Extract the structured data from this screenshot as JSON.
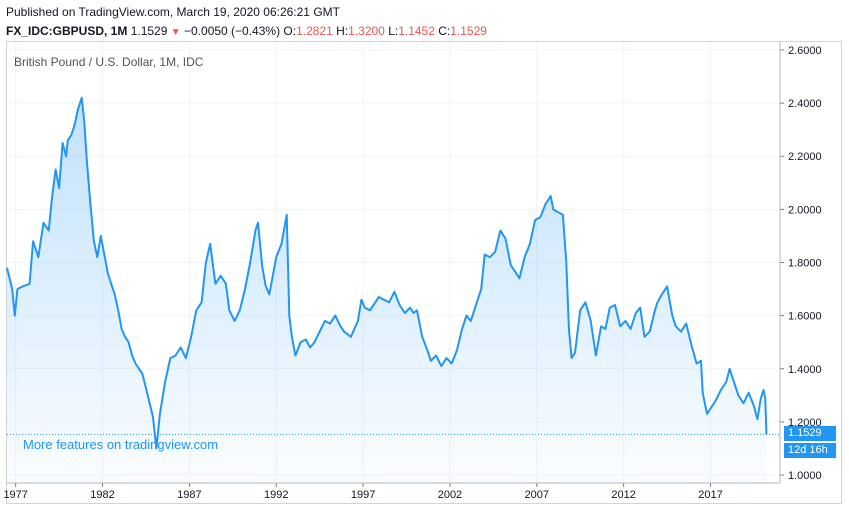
{
  "header": {
    "published": "Published on TradingView.com, March 19, 2020 06:26:21 GMT",
    "symbol": "FX_IDC:GBPUSD, 1M",
    "last": "1.1529",
    "change": "−0.0050 (−0.43%)",
    "open_label": "O:",
    "open": "1.2821",
    "high_label": "H:",
    "high": "1.3200",
    "low_label": "L:",
    "low": "1.1452",
    "close_label": "C:",
    "close": "1.1529"
  },
  "legend_title": "British Pound / U.S. Dollar, 1M, IDC",
  "promo_text": "More features on tradingview.com",
  "price_tag": {
    "value": "1.1529",
    "countdown": "12d 16h"
  },
  "colors": {
    "line": "#2196f3",
    "fill": "#2196f3",
    "down": "#ef5350",
    "grid": "#f0f3fa",
    "axis_text": "#131722"
  },
  "chart_data": {
    "type": "area",
    "title": "British Pound / U.S. Dollar, 1M, IDC",
    "xlabel": "",
    "ylabel": "",
    "xlim": [
      1976.5,
      2021.0
    ],
    "ylim": [
      0.97,
      2.63
    ],
    "x_ticks": [
      "1977",
      "1982",
      "1987",
      "1992",
      "1997",
      "2002",
      "2007",
      "2012",
      "2017"
    ],
    "x_tick_values": [
      1977,
      1982,
      1987,
      1992,
      1997,
      2002,
      2007,
      2012,
      2017
    ],
    "y_ticks": [
      "1.0000",
      "1.2000",
      "1.4000",
      "1.6000",
      "1.8000",
      "2.0000",
      "2.2000",
      "2.4000",
      "2.6000"
    ],
    "y_tick_values": [
      1.0,
      1.2,
      1.4,
      1.6,
      1.8,
      2.0,
      2.2,
      2.4,
      2.6
    ],
    "grid": true,
    "last_value": 1.1529,
    "series": [
      {
        "values": [
          [
            1976.5,
            1.78
          ],
          [
            1976.8,
            1.7
          ],
          [
            1976.95,
            1.6
          ],
          [
            1977.1,
            1.7
          ],
          [
            1977.4,
            1.71
          ],
          [
            1977.8,
            1.72
          ],
          [
            1978.0,
            1.88
          ],
          [
            1978.3,
            1.82
          ],
          [
            1978.6,
            1.95
          ],
          [
            1978.9,
            1.92
          ],
          [
            1979.1,
            2.05
          ],
          [
            1979.3,
            2.15
          ],
          [
            1979.5,
            2.08
          ],
          [
            1979.7,
            2.25
          ],
          [
            1979.9,
            2.2
          ],
          [
            1980.0,
            2.26
          ],
          [
            1980.2,
            2.28
          ],
          [
            1980.4,
            2.32
          ],
          [
            1980.6,
            2.38
          ],
          [
            1980.8,
            2.42
          ],
          [
            1980.95,
            2.33
          ],
          [
            1981.1,
            2.18
          ],
          [
            1981.3,
            2.02
          ],
          [
            1981.5,
            1.88
          ],
          [
            1981.7,
            1.82
          ],
          [
            1981.9,
            1.9
          ],
          [
            1982.1,
            1.83
          ],
          [
            1982.3,
            1.76
          ],
          [
            1982.5,
            1.72
          ],
          [
            1982.7,
            1.68
          ],
          [
            1982.9,
            1.62
          ],
          [
            1983.1,
            1.55
          ],
          [
            1983.3,
            1.52
          ],
          [
            1983.5,
            1.5
          ],
          [
            1983.7,
            1.45
          ],
          [
            1983.9,
            1.42
          ],
          [
            1984.1,
            1.4
          ],
          [
            1984.3,
            1.38
          ],
          [
            1984.6,
            1.3
          ],
          [
            1984.9,
            1.22
          ],
          [
            1985.1,
            1.1
          ],
          [
            1985.3,
            1.23
          ],
          [
            1985.6,
            1.35
          ],
          [
            1985.9,
            1.44
          ],
          [
            1986.2,
            1.45
          ],
          [
            1986.5,
            1.48
          ],
          [
            1986.8,
            1.44
          ],
          [
            1987.1,
            1.52
          ],
          [
            1987.4,
            1.62
          ],
          [
            1987.7,
            1.65
          ],
          [
            1987.95,
            1.8
          ],
          [
            1988.2,
            1.87
          ],
          [
            1988.5,
            1.72
          ],
          [
            1988.8,
            1.75
          ],
          [
            1989.1,
            1.72
          ],
          [
            1989.3,
            1.62
          ],
          [
            1989.6,
            1.58
          ],
          [
            1989.9,
            1.62
          ],
          [
            1990.2,
            1.7
          ],
          [
            1990.5,
            1.8
          ],
          [
            1990.8,
            1.92
          ],
          [
            1990.95,
            1.95
          ],
          [
            1991.2,
            1.78
          ],
          [
            1991.4,
            1.71
          ],
          [
            1991.6,
            1.68
          ],
          [
            1991.8,
            1.75
          ],
          [
            1992.0,
            1.82
          ],
          [
            1992.3,
            1.87
          ],
          [
            1992.6,
            1.98
          ],
          [
            1992.75,
            1.6
          ],
          [
            1992.9,
            1.52
          ],
          [
            1993.1,
            1.45
          ],
          [
            1993.4,
            1.5
          ],
          [
            1993.7,
            1.51
          ],
          [
            1993.95,
            1.48
          ],
          [
            1994.2,
            1.5
          ],
          [
            1994.5,
            1.54
          ],
          [
            1994.8,
            1.58
          ],
          [
            1995.1,
            1.57
          ],
          [
            1995.4,
            1.6
          ],
          [
            1995.7,
            1.56
          ],
          [
            1995.9,
            1.54
          ],
          [
            1996.1,
            1.53
          ],
          [
            1996.3,
            1.52
          ],
          [
            1996.5,
            1.55
          ],
          [
            1996.7,
            1.58
          ],
          [
            1996.9,
            1.66
          ],
          [
            1997.1,
            1.63
          ],
          [
            1997.4,
            1.62
          ],
          [
            1997.7,
            1.65
          ],
          [
            1997.9,
            1.67
          ],
          [
            1998.2,
            1.66
          ],
          [
            1998.5,
            1.65
          ],
          [
            1998.8,
            1.69
          ],
          [
            1999.1,
            1.64
          ],
          [
            1999.4,
            1.61
          ],
          [
            1999.7,
            1.63
          ],
          [
            1999.9,
            1.61
          ],
          [
            2000.1,
            1.62
          ],
          [
            2000.4,
            1.52
          ],
          [
            2000.7,
            1.47
          ],
          [
            2000.9,
            1.43
          ],
          [
            2001.2,
            1.45
          ],
          [
            2001.5,
            1.41
          ],
          [
            2001.8,
            1.44
          ],
          [
            2002.1,
            1.42
          ],
          [
            2002.4,
            1.47
          ],
          [
            2002.7,
            1.55
          ],
          [
            2002.95,
            1.6
          ],
          [
            2003.2,
            1.58
          ],
          [
            2003.5,
            1.64
          ],
          [
            2003.8,
            1.7
          ],
          [
            2004.0,
            1.83
          ],
          [
            2004.3,
            1.82
          ],
          [
            2004.6,
            1.84
          ],
          [
            2004.9,
            1.92
          ],
          [
            2005.2,
            1.89
          ],
          [
            2005.5,
            1.79
          ],
          [
            2005.8,
            1.76
          ],
          [
            2006.0,
            1.74
          ],
          [
            2006.3,
            1.82
          ],
          [
            2006.6,
            1.87
          ],
          [
            2006.9,
            1.96
          ],
          [
            2007.2,
            1.97
          ],
          [
            2007.5,
            2.02
          ],
          [
            2007.8,
            2.05
          ],
          [
            2007.95,
            2.0
          ],
          [
            2008.2,
            1.99
          ],
          [
            2008.5,
            1.98
          ],
          [
            2008.7,
            1.8
          ],
          [
            2008.85,
            1.55
          ],
          [
            2009.0,
            1.44
          ],
          [
            2009.2,
            1.46
          ],
          [
            2009.5,
            1.62
          ],
          [
            2009.8,
            1.65
          ],
          [
            2010.1,
            1.58
          ],
          [
            2010.4,
            1.45
          ],
          [
            2010.7,
            1.56
          ],
          [
            2010.95,
            1.55
          ],
          [
            2011.2,
            1.63
          ],
          [
            2011.5,
            1.64
          ],
          [
            2011.8,
            1.56
          ],
          [
            2012.1,
            1.58
          ],
          [
            2012.4,
            1.55
          ],
          [
            2012.7,
            1.61
          ],
          [
            2012.95,
            1.63
          ],
          [
            2013.2,
            1.52
          ],
          [
            2013.5,
            1.54
          ],
          [
            2013.8,
            1.62
          ],
          [
            2013.95,
            1.65
          ],
          [
            2014.2,
            1.68
          ],
          [
            2014.5,
            1.71
          ],
          [
            2014.8,
            1.6
          ],
          [
            2015.0,
            1.56
          ],
          [
            2015.3,
            1.54
          ],
          [
            2015.6,
            1.57
          ],
          [
            2015.9,
            1.49
          ],
          [
            2016.2,
            1.42
          ],
          [
            2016.45,
            1.43
          ],
          [
            2016.55,
            1.31
          ],
          [
            2016.8,
            1.23
          ],
          [
            2017.0,
            1.25
          ],
          [
            2017.3,
            1.28
          ],
          [
            2017.6,
            1.32
          ],
          [
            2017.9,
            1.35
          ],
          [
            2018.1,
            1.4
          ],
          [
            2018.3,
            1.36
          ],
          [
            2018.6,
            1.3
          ],
          [
            2018.9,
            1.27
          ],
          [
            2019.2,
            1.31
          ],
          [
            2019.5,
            1.26
          ],
          [
            2019.7,
            1.21
          ],
          [
            2019.9,
            1.29
          ],
          [
            2020.05,
            1.32
          ],
          [
            2020.15,
            1.29
          ],
          [
            2020.22,
            1.1529
          ]
        ]
      }
    ]
  }
}
